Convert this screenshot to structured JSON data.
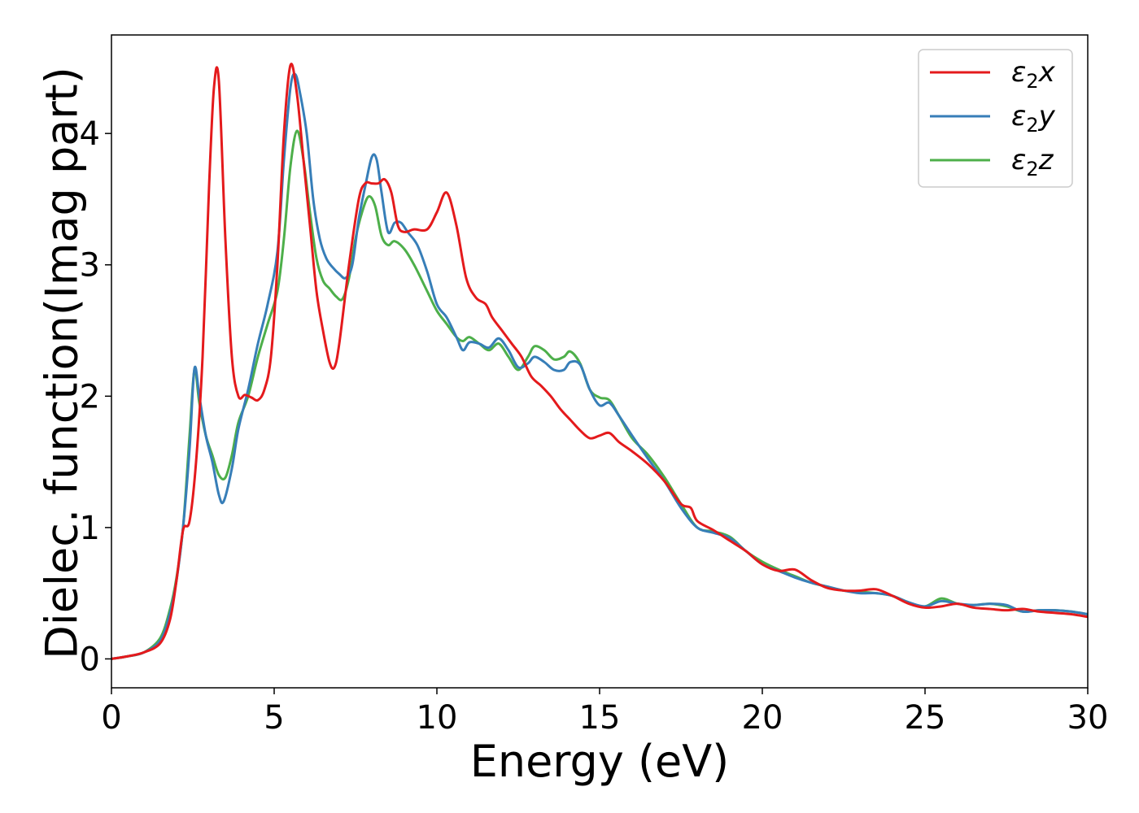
{
  "chart_data": {
    "type": "line",
    "xlabel": "Energy (eV)",
    "ylabel": "Dielec. function(Imag part)",
    "xlim": [
      0,
      30
    ],
    "ylim": [
      -0.22,
      4.75
    ],
    "xticks": [
      0,
      5,
      10,
      15,
      20,
      25,
      30
    ],
    "yticks": [
      0,
      1,
      2,
      3,
      4
    ],
    "grid": false,
    "legend_position": "top-right",
    "series": [
      {
        "name": "ε₂x",
        "label_main": "ε",
        "label_sub": "2",
        "label_tail": "x",
        "color": "#e41a1c",
        "x": [
          0,
          0.5,
          1.0,
          1.5,
          1.8,
          2.0,
          2.2,
          2.4,
          2.6,
          2.8,
          3.0,
          3.15,
          3.3,
          3.5,
          3.7,
          3.9,
          4.1,
          4.3,
          4.5,
          4.7,
          4.9,
          5.1,
          5.3,
          5.5,
          5.7,
          5.9,
          6.1,
          6.3,
          6.5,
          6.7,
          6.85,
          7.0,
          7.3,
          7.6,
          7.8,
          8.0,
          8.2,
          8.4,
          8.6,
          8.8,
          9.0,
          9.3,
          9.7,
          10.0,
          10.3,
          10.6,
          10.9,
          11.2,
          11.5,
          11.7,
          12.0,
          12.3,
          12.6,
          12.9,
          13.2,
          13.5,
          13.8,
          14.1,
          14.4,
          14.7,
          15.0,
          15.3,
          15.6,
          16.0,
          16.5,
          17.0,
          17.5,
          17.8,
          18.0,
          18.5,
          19.0,
          19.5,
          20.0,
          20.5,
          21.0,
          21.5,
          22.0,
          22.5,
          23.0,
          23.5,
          24.0,
          24.5,
          25.0,
          25.5,
          26.0,
          26.5,
          27.0,
          27.5,
          28.0,
          28.5,
          29.0,
          29.5,
          30.0
        ],
        "y": [
          0.0,
          0.02,
          0.05,
          0.12,
          0.3,
          0.6,
          0.98,
          1.05,
          1.5,
          2.3,
          3.6,
          4.35,
          4.4,
          3.2,
          2.3,
          2.0,
          2.01,
          1.99,
          1.97,
          2.05,
          2.3,
          3.0,
          4.0,
          4.52,
          4.3,
          3.8,
          3.3,
          2.8,
          2.5,
          2.26,
          2.22,
          2.4,
          3.0,
          3.5,
          3.62,
          3.62,
          3.62,
          3.65,
          3.55,
          3.3,
          3.25,
          3.27,
          3.27,
          3.4,
          3.55,
          3.3,
          2.9,
          2.75,
          2.7,
          2.6,
          2.5,
          2.4,
          2.3,
          2.15,
          2.08,
          2.0,
          1.9,
          1.82,
          1.74,
          1.68,
          1.7,
          1.72,
          1.65,
          1.58,
          1.48,
          1.35,
          1.18,
          1.15,
          1.05,
          0.98,
          0.9,
          0.82,
          0.72,
          0.67,
          0.68,
          0.6,
          0.54,
          0.52,
          0.52,
          0.53,
          0.48,
          0.42,
          0.39,
          0.4,
          0.42,
          0.39,
          0.38,
          0.37,
          0.38,
          0.36,
          0.35,
          0.34,
          0.32
        ]
      },
      {
        "name": "ε₂y",
        "label_main": "ε",
        "label_sub": "2",
        "label_tail": "y",
        "color": "#377eb8",
        "x": [
          0,
          0.5,
          1.0,
          1.5,
          1.8,
          2.0,
          2.2,
          2.4,
          2.55,
          2.7,
          2.9,
          3.1,
          3.3,
          3.45,
          3.7,
          3.9,
          4.2,
          4.5,
          4.8,
          5.1,
          5.3,
          5.5,
          5.65,
          5.8,
          6.0,
          6.2,
          6.4,
          6.6,
          6.8,
          7.0,
          7.2,
          7.4,
          7.6,
          7.8,
          8.0,
          8.15,
          8.3,
          8.5,
          8.7,
          8.9,
          9.1,
          9.4,
          9.7,
          10.0,
          10.3,
          10.6,
          10.8,
          11.0,
          11.3,
          11.6,
          11.9,
          12.2,
          12.5,
          12.8,
          13.0,
          13.3,
          13.6,
          13.9,
          14.1,
          14.4,
          14.7,
          15.0,
          15.3,
          15.6,
          16.0,
          16.5,
          17.0,
          17.5,
          18.0,
          18.5,
          19.0,
          19.5,
          20.0,
          20.5,
          21.0,
          21.5,
          22.0,
          22.5,
          23.0,
          23.5,
          24.0,
          24.5,
          25.0,
          25.5,
          26.0,
          26.5,
          27.0,
          27.5,
          28.0,
          28.5,
          29.0,
          29.5,
          30.0
        ],
        "y": [
          0.0,
          0.02,
          0.05,
          0.14,
          0.35,
          0.6,
          1.0,
          1.6,
          2.21,
          2.0,
          1.7,
          1.5,
          1.25,
          1.2,
          1.45,
          1.75,
          2.05,
          2.4,
          2.7,
          3.1,
          3.8,
          4.35,
          4.45,
          4.3,
          4.0,
          3.5,
          3.2,
          3.05,
          2.98,
          2.93,
          2.9,
          3.0,
          3.35,
          3.6,
          3.82,
          3.8,
          3.55,
          3.25,
          3.32,
          3.32,
          3.25,
          3.15,
          2.95,
          2.7,
          2.6,
          2.45,
          2.35,
          2.41,
          2.4,
          2.37,
          2.44,
          2.35,
          2.22,
          2.25,
          2.3,
          2.26,
          2.2,
          2.2,
          2.26,
          2.24,
          2.05,
          1.93,
          1.95,
          1.85,
          1.7,
          1.52,
          1.35,
          1.15,
          1.0,
          0.96,
          0.92,
          0.82,
          0.72,
          0.67,
          0.62,
          0.58,
          0.55,
          0.52,
          0.5,
          0.5,
          0.48,
          0.43,
          0.4,
          0.44,
          0.42,
          0.41,
          0.42,
          0.41,
          0.36,
          0.37,
          0.37,
          0.36,
          0.34
        ]
      },
      {
        "name": "ε₂z",
        "label_main": "ε",
        "label_sub": "2",
        "label_tail": "z",
        "color": "#4daf4a",
        "x": [
          0,
          0.5,
          1.0,
          1.5,
          1.8,
          2.0,
          2.2,
          2.4,
          2.55,
          2.7,
          2.9,
          3.1,
          3.3,
          3.5,
          3.7,
          3.9,
          4.2,
          4.5,
          4.8,
          5.1,
          5.3,
          5.5,
          5.7,
          5.9,
          6.1,
          6.3,
          6.5,
          6.7,
          6.9,
          7.1,
          7.3,
          7.5,
          7.7,
          7.9,
          8.1,
          8.3,
          8.5,
          8.7,
          9.0,
          9.3,
          9.7,
          10.0,
          10.3,
          10.6,
          10.8,
          11.0,
          11.3,
          11.6,
          11.9,
          12.2,
          12.5,
          12.8,
          13.0,
          13.3,
          13.6,
          13.9,
          14.1,
          14.4,
          14.7,
          15.0,
          15.3,
          15.6,
          16.0,
          16.5,
          17.0,
          17.5,
          18.0,
          18.5,
          19.0,
          19.5,
          20.0,
          20.5,
          21.0,
          21.5,
          22.0,
          22.5,
          23.0,
          23.5,
          24.0,
          24.5,
          25.0,
          25.5,
          26.0,
          26.5,
          27.0,
          27.5,
          28.0,
          28.5,
          29.0,
          29.5,
          30.0
        ],
        "y": [
          0.0,
          0.02,
          0.05,
          0.16,
          0.38,
          0.62,
          1.0,
          1.7,
          2.2,
          1.95,
          1.7,
          1.55,
          1.4,
          1.38,
          1.55,
          1.8,
          2.0,
          2.3,
          2.55,
          2.8,
          3.2,
          3.75,
          4.02,
          3.8,
          3.4,
          3.05,
          2.88,
          2.82,
          2.76,
          2.74,
          2.9,
          3.2,
          3.4,
          3.52,
          3.45,
          3.22,
          3.15,
          3.18,
          3.12,
          3.0,
          2.8,
          2.65,
          2.55,
          2.45,
          2.42,
          2.45,
          2.4,
          2.35,
          2.4,
          2.3,
          2.2,
          2.3,
          2.38,
          2.35,
          2.28,
          2.3,
          2.34,
          2.25,
          2.05,
          1.99,
          1.97,
          1.85,
          1.68,
          1.55,
          1.38,
          1.18,
          1.0,
          0.97,
          0.93,
          0.82,
          0.74,
          0.68,
          0.63,
          0.58,
          0.55,
          0.52,
          0.51,
          0.5,
          0.48,
          0.43,
          0.4,
          0.46,
          0.42,
          0.41,
          0.42,
          0.4,
          0.36,
          0.37,
          0.37,
          0.36,
          0.34
        ]
      }
    ]
  }
}
